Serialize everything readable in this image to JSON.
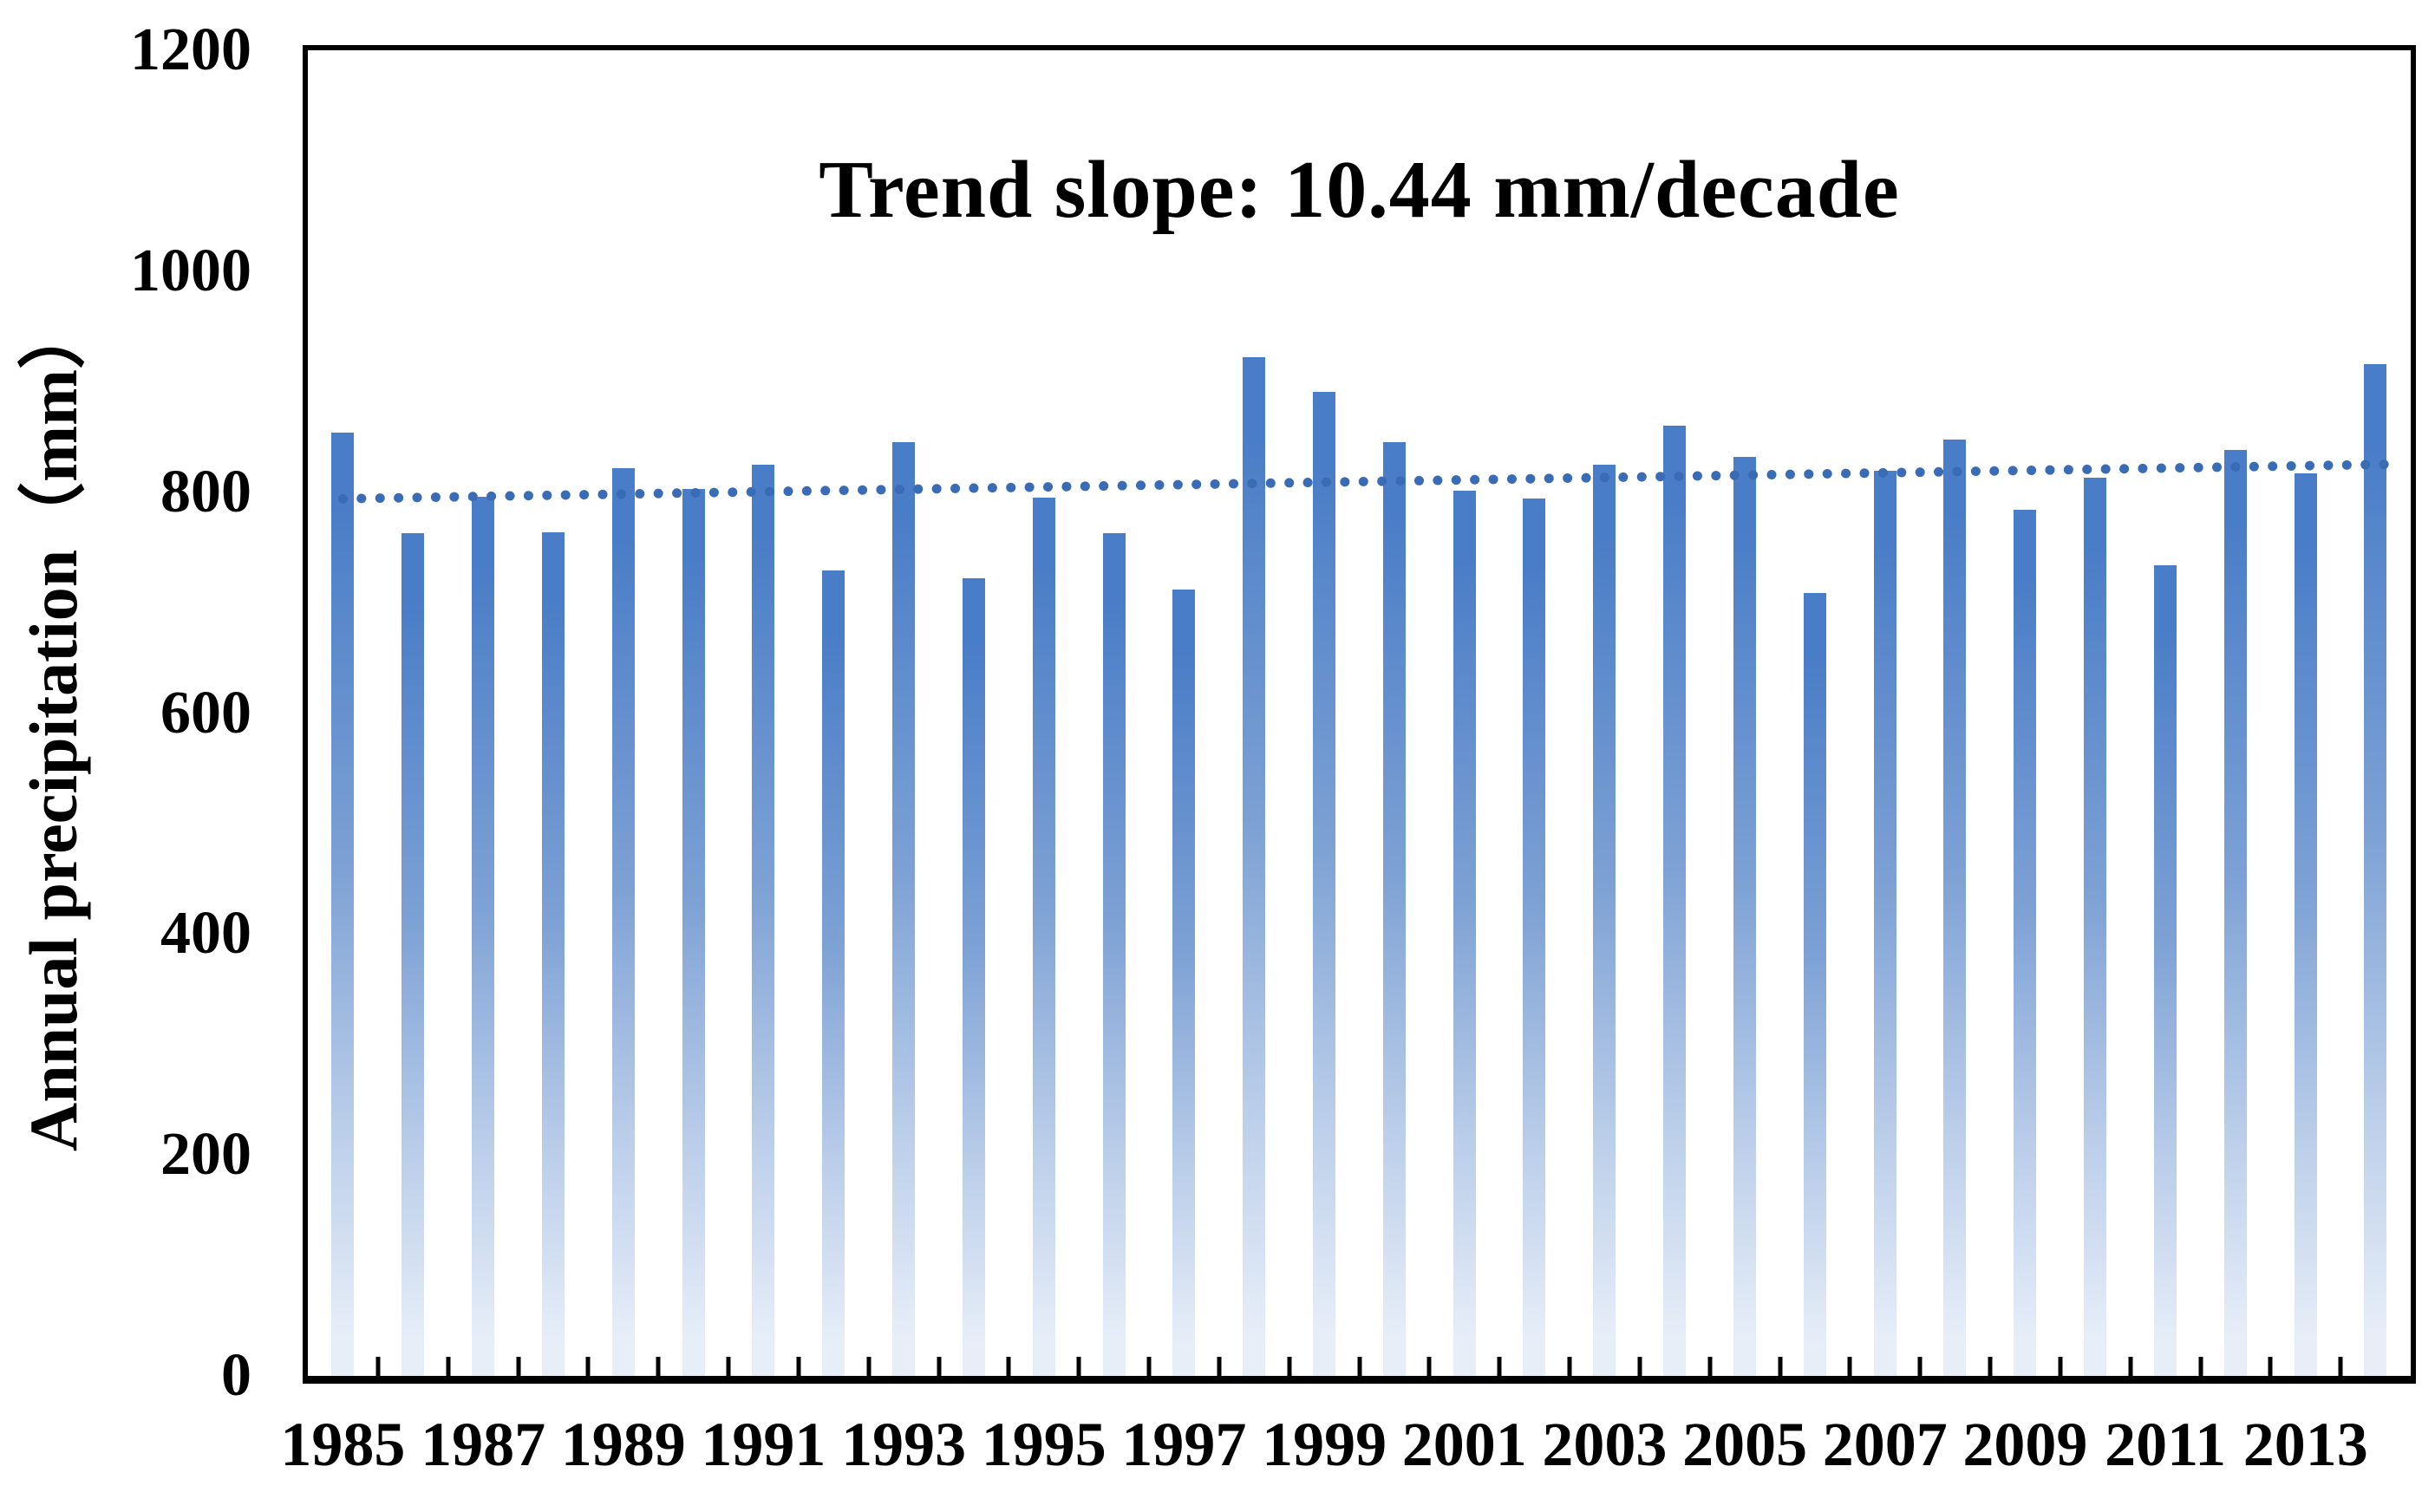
{
  "chart_data": {
    "type": "bar",
    "title": "Trend slope: 10.44 mm/decade",
    "ylabel": "Annual precipitation（mm）",
    "xlabel": "",
    "ylim": [
      0,
      1200
    ],
    "yticks": [
      0,
      200,
      400,
      600,
      800,
      1000,
      1200
    ],
    "xtick_labels": [
      "1985",
      "1987",
      "1989",
      "1991",
      "1993",
      "1995",
      "1997",
      "1999",
      "2001",
      "2003",
      "2005",
      "2007",
      "2009",
      "2011",
      "2013"
    ],
    "categories": [
      "1985",
      "1986",
      "1987",
      "1988",
      "1989",
      "1990",
      "1991",
      "1992",
      "1993",
      "1994",
      "1995",
      "1996",
      "1997",
      "1998",
      "1999",
      "2000",
      "2001",
      "2002",
      "2003",
      "2004",
      "2005",
      "2006",
      "2007",
      "2008",
      "2009",
      "2010",
      "2011",
      "2012",
      "2013",
      "2014"
    ],
    "values": [
      854,
      763,
      796,
      764,
      822,
      803,
      825,
      729,
      845,
      722,
      795,
      763,
      712,
      922,
      891,
      845,
      801,
      794,
      825,
      860,
      832,
      709,
      819,
      848,
      784,
      813,
      734,
      838,
      817,
      916
    ],
    "series_name": "Annual precipitation",
    "trendline": {
      "style": "dotted",
      "slope_mm_per_decade": 10.44,
      "start_value": 794,
      "end_value": 825
    },
    "grid": false,
    "legend_position": "none",
    "colors": {
      "bar_top": "#4a7dc7",
      "bar_mid": "#7da1d4",
      "bar_low": "#b7cbe8",
      "bar_bottom": "#e7eef8",
      "trend": "#3a6cb5",
      "axis": "#000000",
      "text": "#000000",
      "background": "#ffffff"
    }
  }
}
